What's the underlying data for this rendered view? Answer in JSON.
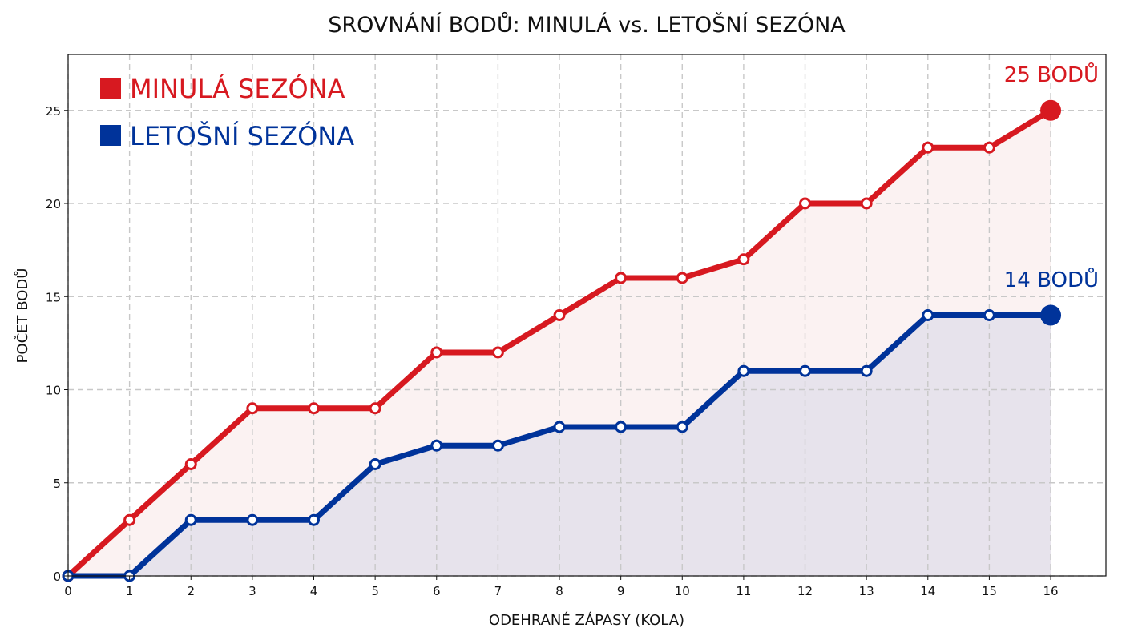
{
  "chart_data": {
    "type": "line",
    "title": "SROVNÁNÍ BODŮ: MINULÁ vs. LETOŠNÍ SEZÓNA",
    "xlabel": "ODEHRANÉ ZÁPASY (KOLA)",
    "ylabel": "POČET BODŮ",
    "x": [
      0,
      1,
      2,
      3,
      4,
      5,
      6,
      7,
      8,
      9,
      10,
      11,
      12,
      13,
      14,
      15,
      16
    ],
    "xticks": [
      0,
      1,
      2,
      3,
      4,
      5,
      6,
      7,
      8,
      9,
      10,
      11,
      12,
      13,
      14,
      15,
      16
    ],
    "yticks": [
      0,
      5,
      10,
      15,
      20,
      25
    ],
    "xlim": [
      0,
      16.9
    ],
    "ylim": [
      0,
      28
    ],
    "grid": true,
    "legend_position": "top-left",
    "series": [
      {
        "name": "MINULÁ SEZÓNA",
        "color": "#d71920",
        "fill": "#fbf2f2",
        "values": [
          0,
          3,
          6,
          9,
          9,
          9,
          12,
          12,
          14,
          16,
          16,
          17,
          20,
          20,
          23,
          23,
          25
        ],
        "end_label": "25 BODŮ"
      },
      {
        "name": "LETOŠNÍ SEZÓNA",
        "color": "#00339a",
        "fill": "#e7e3ec",
        "values": [
          0,
          0,
          3,
          3,
          3,
          6,
          7,
          7,
          8,
          8,
          8,
          11,
          11,
          11,
          14,
          14,
          14
        ],
        "end_label": "14 BODŮ"
      }
    ]
  }
}
